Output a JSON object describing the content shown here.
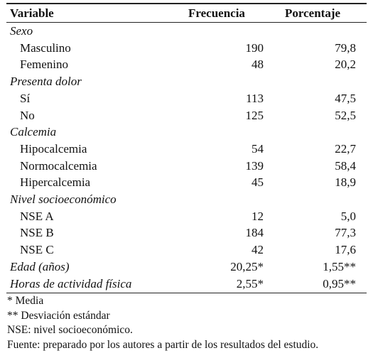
{
  "table": {
    "header": [
      "Variable",
      "Frecuencia",
      "Porcentaje"
    ],
    "body": [
      {
        "group": "Sexo",
        "rows": [
          [
            "Masculino",
            "190",
            "79,8"
          ],
          [
            "Femenino",
            "48",
            "20,2"
          ]
        ]
      },
      {
        "group": "Presenta dolor",
        "rows": [
          [
            "Sí",
            "113",
            "47,5"
          ],
          [
            "No",
            "125",
            "52,5"
          ]
        ]
      },
      {
        "group": "Calcemia",
        "rows": [
          [
            "Hipocalcemia",
            "54",
            "22,7"
          ],
          [
            "Normocalcemia",
            "139",
            "58,4"
          ],
          [
            "Hipercalcemia",
            "45",
            "18,9"
          ]
        ]
      },
      {
        "group": "Nivel socioeconómico",
        "rows": [
          [
            "NSE A",
            "12",
            "5,0"
          ],
          [
            "NSE B",
            "184",
            "77,3"
          ],
          [
            "NSE C",
            "42",
            "17,6"
          ]
        ]
      },
      {
        "rows": [
          [
            "Edad (años)",
            "20,25*",
            "1,55**"
          ],
          [
            "Horas de actividad física",
            "2,55*",
            "0,95**"
          ]
        ]
      }
    ]
  },
  "notes": [
    "* Media",
    "** Desviación estándar",
    "NSE: nivel socioeconómico.",
    "Fuente: preparado por los autores a partir de los resultados del estudio."
  ]
}
